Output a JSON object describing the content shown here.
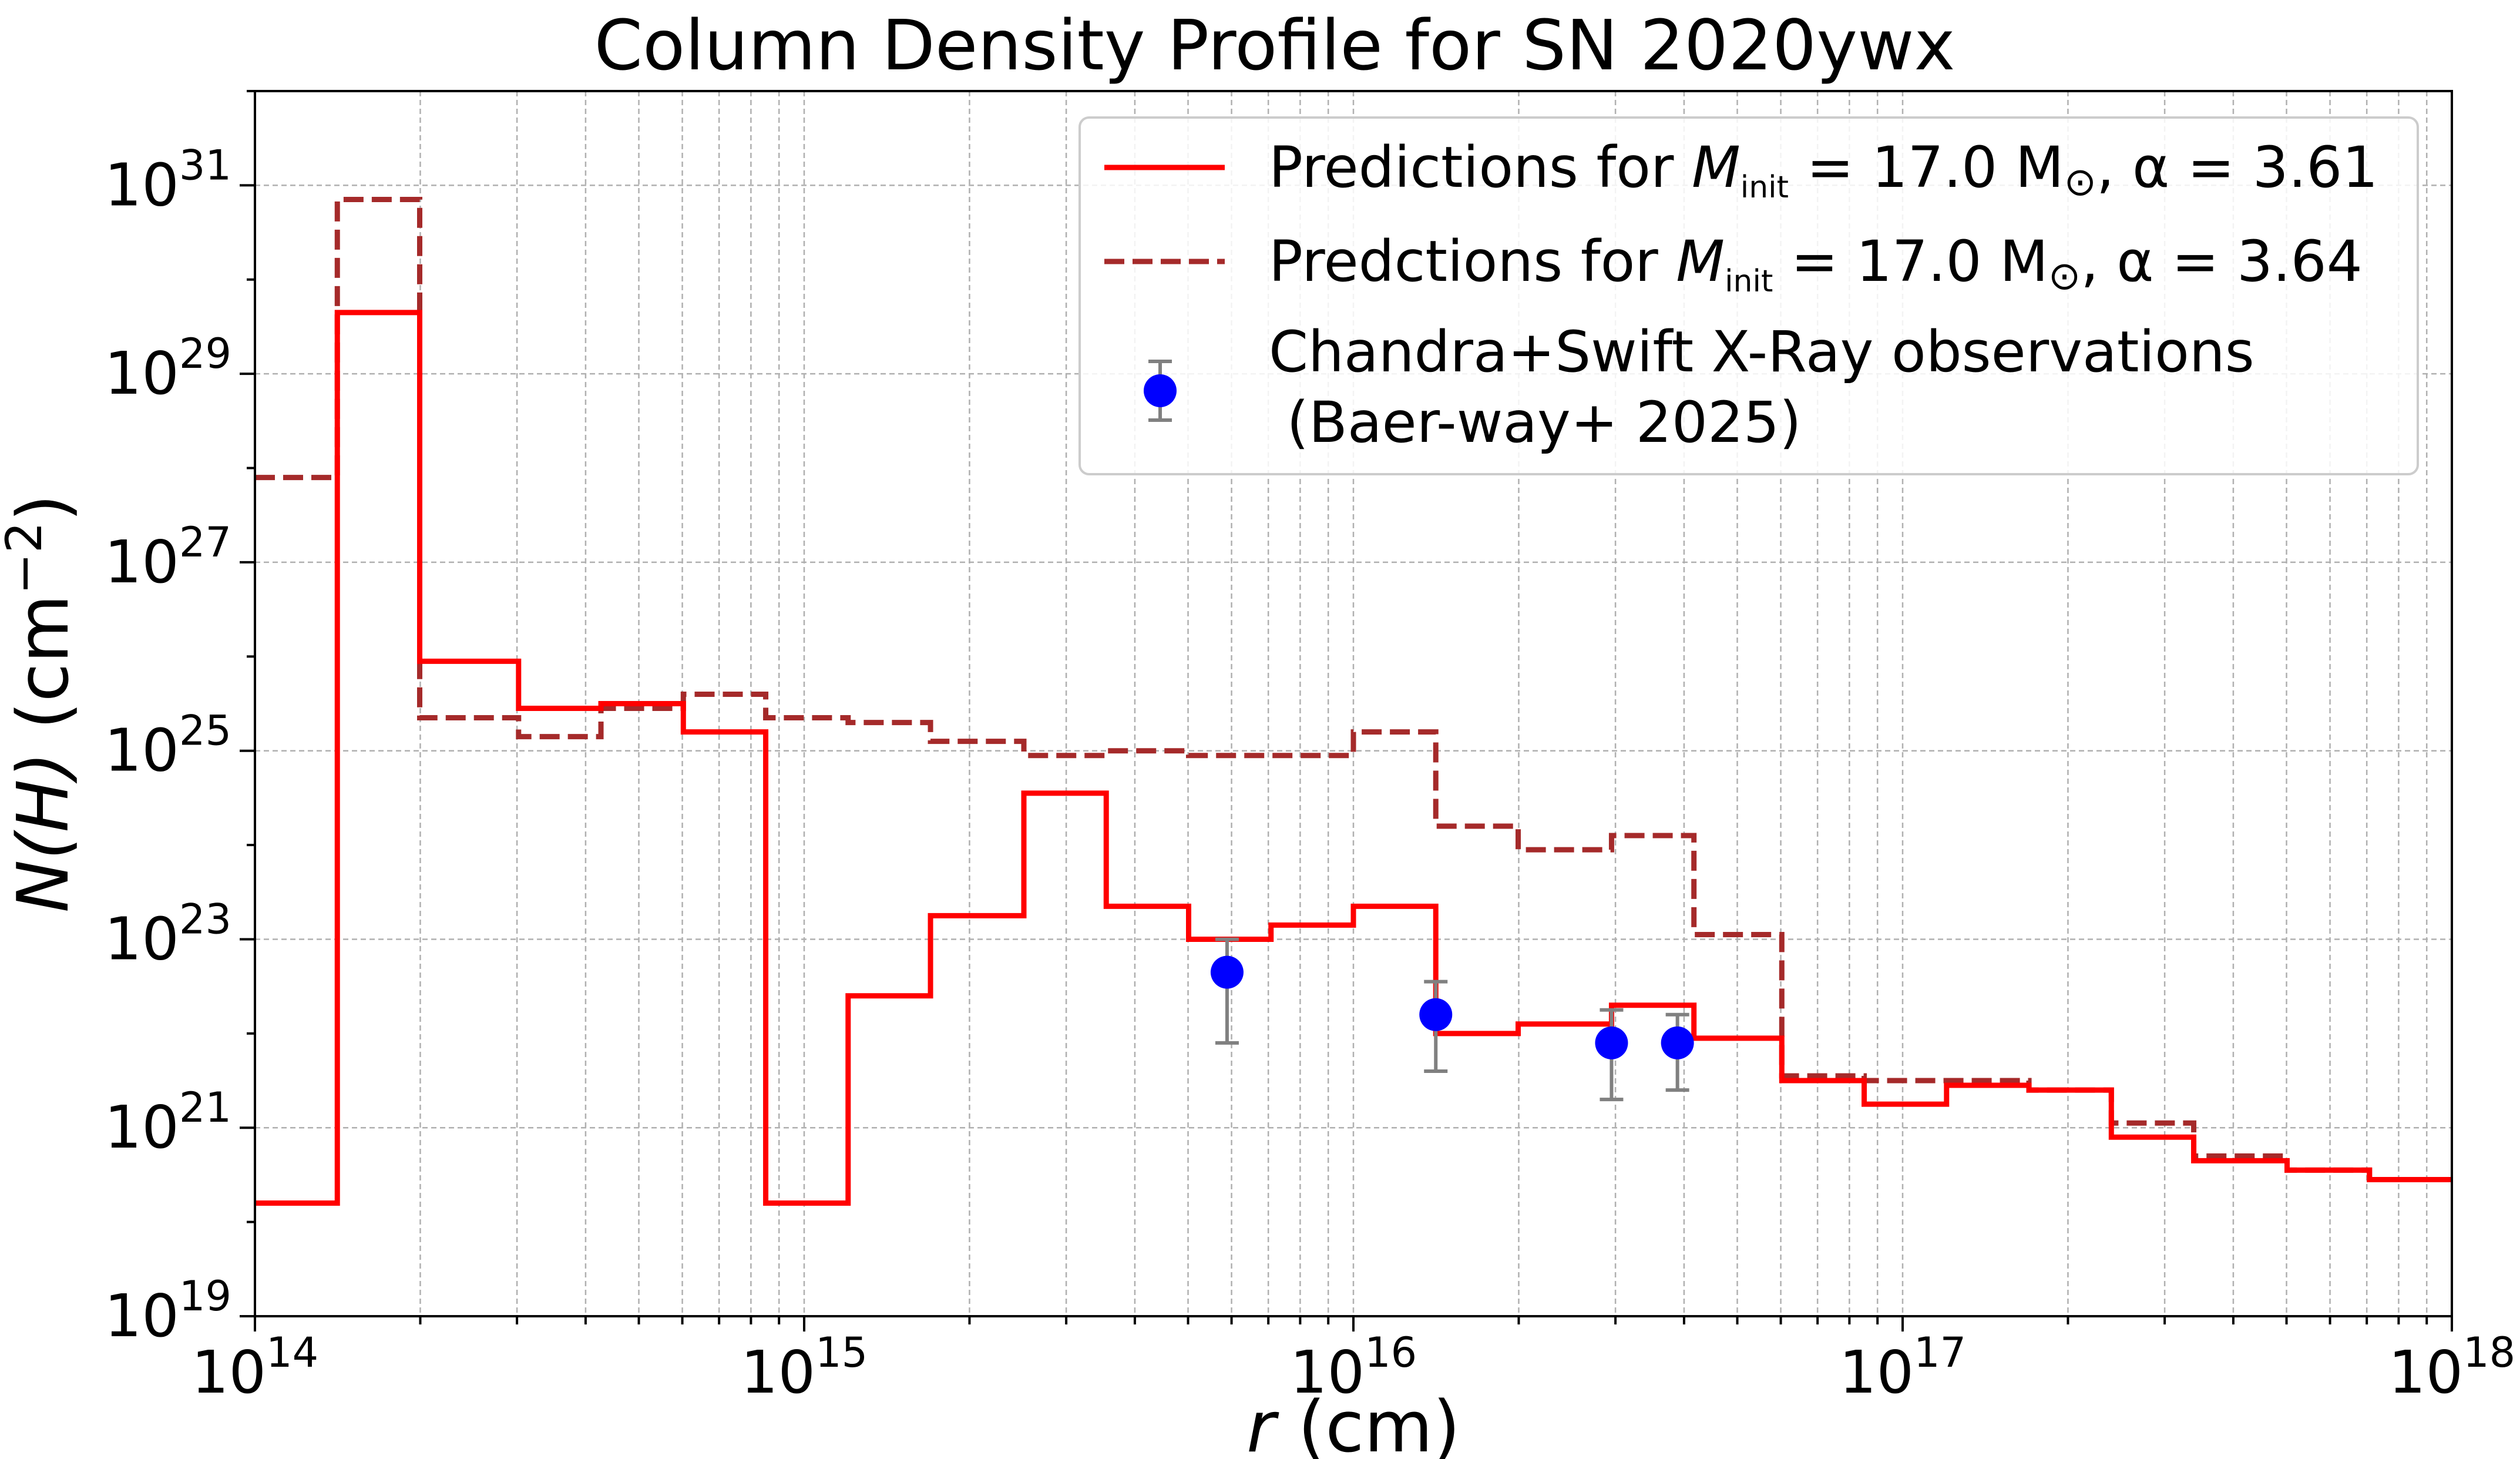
{
  "chart_data": {
    "type": "line",
    "title": "Column Density Profile for SN 2020ywx",
    "xlabel": {
      "italic": "r",
      "rest": " (cm)"
    },
    "ylabel": {
      "italic": "N(H)",
      "rest": " (cm",
      "sup": "−2",
      "close": ")"
    },
    "xscale": "log",
    "yscale": "log",
    "xlim_exp": [
      14,
      18
    ],
    "ylim_exp": [
      19,
      32
    ],
    "x_ticks": [
      {
        "base": "10",
        "exp": "14"
      },
      {
        "base": "10",
        "exp": "15"
      },
      {
        "base": "10",
        "exp": "16"
      },
      {
        "base": "10",
        "exp": "17"
      },
      {
        "base": "10",
        "exp": "18"
      }
    ],
    "y_ticks": [
      {
        "base": "10",
        "exp": "19"
      },
      {
        "base": "10",
        "exp": "21"
      },
      {
        "base": "10",
        "exp": "23"
      },
      {
        "base": "10",
        "exp": "25"
      },
      {
        "base": "10",
        "exp": "27"
      },
      {
        "base": "10",
        "exp": "29"
      },
      {
        "base": "10",
        "exp": "31"
      }
    ],
    "grid": true,
    "legend_position": "top-right",
    "series": [
      {
        "name": "Predictions for M_init = 17.0 M☉, α = 3.61",
        "legend": {
          "prefix": "Predictions for ",
          "M": "M",
          "sub": "init",
          "mid": " = 17.0 M",
          "sun": "⊙",
          "tail": ", α = 3.61"
        },
        "style": "solid",
        "color": "#ff0000",
        "steps_log10": [
          [
            14.0,
            20.2
          ],
          [
            14.15,
            29.65
          ],
          [
            14.3,
            25.95
          ],
          [
            14.48,
            25.45
          ],
          [
            14.63,
            25.5
          ],
          [
            14.78,
            25.2
          ],
          [
            14.93,
            20.2
          ],
          [
            15.08,
            22.4
          ],
          [
            15.23,
            23.25
          ],
          [
            15.4,
            24.55
          ],
          [
            15.55,
            23.35
          ],
          [
            15.7,
            23.0
          ],
          [
            15.85,
            23.15
          ],
          [
            16.0,
            23.35
          ],
          [
            16.15,
            22.0
          ],
          [
            16.3,
            22.1
          ],
          [
            16.47,
            22.3
          ],
          [
            16.62,
            21.95
          ],
          [
            16.78,
            21.5
          ],
          [
            16.93,
            21.25
          ],
          [
            17.08,
            21.45
          ],
          [
            17.23,
            21.4
          ],
          [
            17.38,
            20.9
          ],
          [
            17.53,
            20.65
          ],
          [
            17.7,
            20.55
          ],
          [
            17.85,
            20.45
          ],
          [
            18.0,
            20.45
          ]
        ]
      },
      {
        "name": "Predctions for M_init = 17.0 M☉, α = 3.64",
        "legend": {
          "prefix": "Predctions for ",
          "M": "M",
          "sub": "init",
          "mid": " = 17.0 M",
          "sun": "⊙",
          "tail": ", α = 3.64"
        },
        "style": "dashed",
        "color": "#a52a2a",
        "steps_log10": [
          [
            14.0,
            27.9
          ],
          [
            14.15,
            30.85
          ],
          [
            14.3,
            25.35
          ],
          [
            14.48,
            25.15
          ],
          [
            14.63,
            25.45
          ],
          [
            14.78,
            25.6
          ],
          [
            14.93,
            25.35
          ],
          [
            15.08,
            25.3
          ],
          [
            15.23,
            25.1
          ],
          [
            15.4,
            24.95
          ],
          [
            15.55,
            25.0
          ],
          [
            15.7,
            24.95
          ],
          [
            15.85,
            24.95
          ],
          [
            16.0,
            25.2
          ],
          [
            16.15,
            24.2
          ],
          [
            16.3,
            23.95
          ],
          [
            16.47,
            24.1
          ],
          [
            16.62,
            23.05
          ],
          [
            16.78,
            21.55
          ],
          [
            16.93,
            21.5
          ],
          [
            17.08,
            21.5
          ],
          [
            17.23,
            21.4
          ],
          [
            17.38,
            21.05
          ],
          [
            17.53,
            20.7
          ],
          [
            17.7,
            20.55
          ],
          [
            17.85,
            20.45
          ],
          [
            18.0,
            20.45
          ]
        ]
      }
    ],
    "observations": {
      "name": "Chandra+Swift X-Ray observations\n (Baer-way+ 2025)",
      "legend_lines": [
        "Chandra+Swift X-Ray observations",
        " (Baer-way+ 2025)"
      ],
      "marker_color": "#0000ff",
      "errorbar_color": "#808080",
      "points_log10": [
        {
          "x": 15.77,
          "y": 22.65,
          "ylow": 21.9,
          "yhigh": 23.0
        },
        {
          "x": 16.15,
          "y": 22.2,
          "ylow": 21.6,
          "yhigh": 22.55
        },
        {
          "x": 16.47,
          "y": 21.9,
          "ylow": 21.3,
          "yhigh": 22.25
        },
        {
          "x": 16.59,
          "y": 21.9,
          "ylow": 21.4,
          "yhigh": 22.2
        }
      ]
    }
  }
}
